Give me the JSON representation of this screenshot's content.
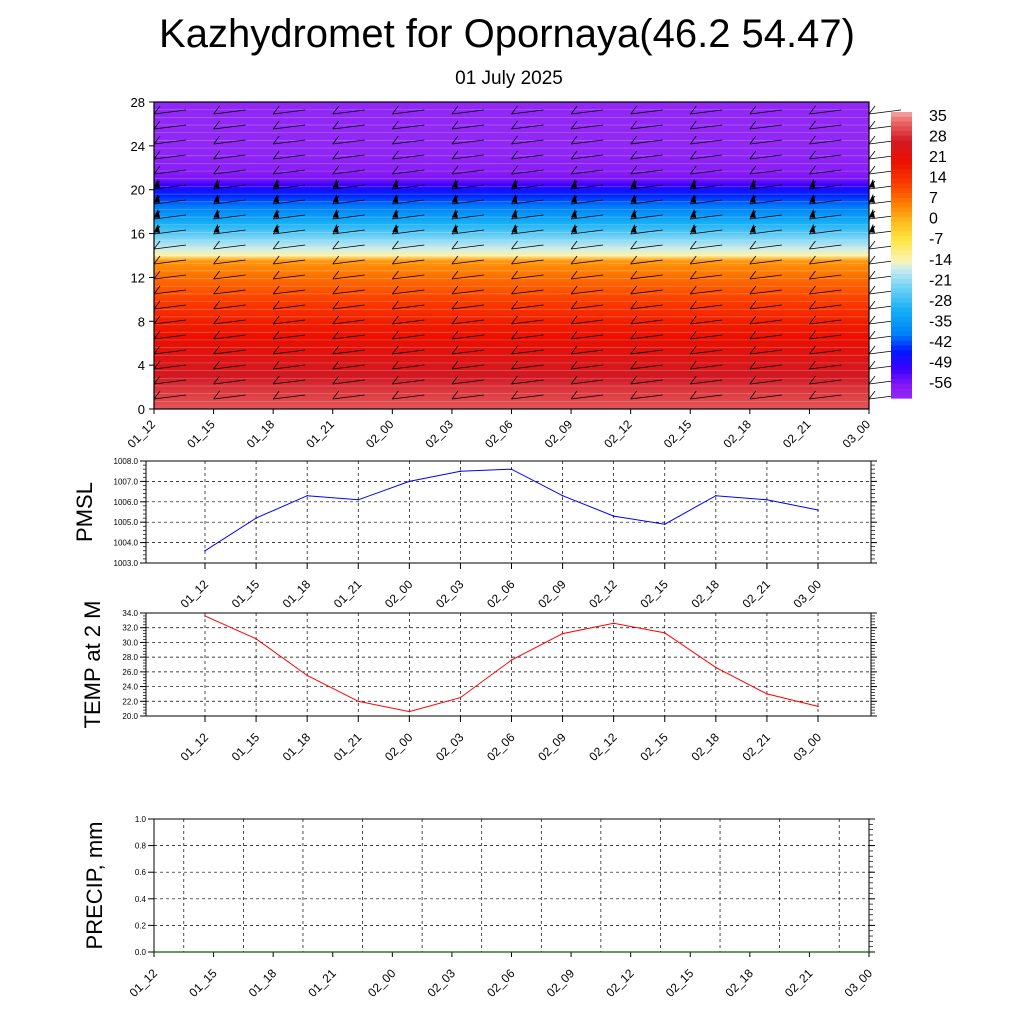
{
  "page": {
    "title": "Kazhydromet for Opornaya(46.2 54.47)",
    "subtitle": "01 July 2025"
  },
  "colors": {
    "pmsl_line": "#0000ff",
    "temp_line": "#ff0000",
    "precip_line": "#006400",
    "grid": "#000000"
  },
  "chart_data": [
    {
      "type": "heatmap",
      "name": "height-time temperature section with wind barbs",
      "x_tick_labels": [
        "01_12",
        "01_15",
        "01_18",
        "01_21",
        "02_00",
        "02_03",
        "02_06",
        "02_09",
        "02_12",
        "02_15",
        "02_18",
        "02_21",
        "03_00"
      ],
      "y_ticks": [
        0,
        4,
        8,
        12,
        16,
        20,
        24,
        28
      ],
      "ylim": [
        0,
        28
      ],
      "colorbar_labels": [
        "35",
        "28",
        "21",
        "14",
        "7",
        "0",
        "-7",
        "-14",
        "-21",
        "-28",
        "-35",
        "-42",
        "-49",
        "-56"
      ],
      "colorbar_range": [
        -60,
        38
      ],
      "temperature_profile": [
        {
          "level": 0,
          "value": 33
        },
        {
          "level": 2,
          "value": 30
        },
        {
          "level": 4,
          "value": 26
        },
        {
          "level": 6,
          "value": 22
        },
        {
          "level": 8,
          "value": 18
        },
        {
          "level": 10,
          "value": 13
        },
        {
          "level": 12,
          "value": 8
        },
        {
          "level": 13.5,
          "value": 4
        },
        {
          "level": 14,
          "value": -12
        },
        {
          "level": 16,
          "value": -24
        },
        {
          "level": 18,
          "value": -36
        },
        {
          "level": 20,
          "value": -46
        },
        {
          "level": 21,
          "value": -55
        },
        {
          "level": 22,
          "value": -58
        },
        {
          "level": 24,
          "value": -60
        },
        {
          "level": 28,
          "value": -60
        }
      ]
    },
    {
      "type": "line",
      "name": "PMSL",
      "ylabel": "PMSL",
      "x": [
        "01_12",
        "01_15",
        "01_18",
        "01_21",
        "02_00",
        "02_03",
        "02_06",
        "02_09",
        "02_12",
        "02_15",
        "02_18",
        "02_21",
        "03_00"
      ],
      "values": [
        1003.6,
        1005.2,
        1006.3,
        1006.1,
        1007.0,
        1007.5,
        1007.6,
        1006.3,
        1005.3,
        1004.9,
        1006.3,
        1006.1,
        1005.6
      ],
      "ylim": [
        1003.0,
        1008.0
      ],
      "y_ticks": [
        "1003.0",
        "1004.0",
        "1005.0",
        "1006.0",
        "1007.0",
        "1008.0"
      ]
    },
    {
      "type": "line",
      "name": "TEMP at 2 M",
      "ylabel": "TEMP at 2 M",
      "x": [
        "01_12",
        "01_15",
        "01_18",
        "01_21",
        "02_00",
        "02_03",
        "02_06",
        "02_09",
        "02_12",
        "02_15",
        "02_18",
        "02_21",
        "03_00"
      ],
      "values": [
        33.6,
        30.5,
        25.5,
        22.0,
        20.6,
        22.5,
        27.6,
        31.2,
        32.6,
        31.3,
        26.6,
        23.0,
        21.3
      ],
      "ylim": [
        20.0,
        34.0
      ],
      "y_ticks": [
        "20.0",
        "22.0",
        "24.0",
        "26.0",
        "28.0",
        "30.0",
        "32.0",
        "34.0"
      ]
    },
    {
      "type": "line",
      "name": "PRECIP, mm",
      "ylabel": "PRECIP, mm",
      "x": [
        "01_12",
        "01_15",
        "01_18",
        "01_21",
        "02_00",
        "02_03",
        "02_06",
        "02_09",
        "02_12",
        "02_15",
        "02_18",
        "02_21",
        "03_00"
      ],
      "values": [
        0,
        0,
        0,
        0,
        0,
        0,
        0,
        0,
        0,
        0,
        0,
        0,
        0
      ],
      "ylim": [
        0.0,
        1.0
      ],
      "y_ticks": [
        "0.0",
        "0.2",
        "0.4",
        "0.6",
        "0.8",
        "1.0"
      ]
    }
  ]
}
